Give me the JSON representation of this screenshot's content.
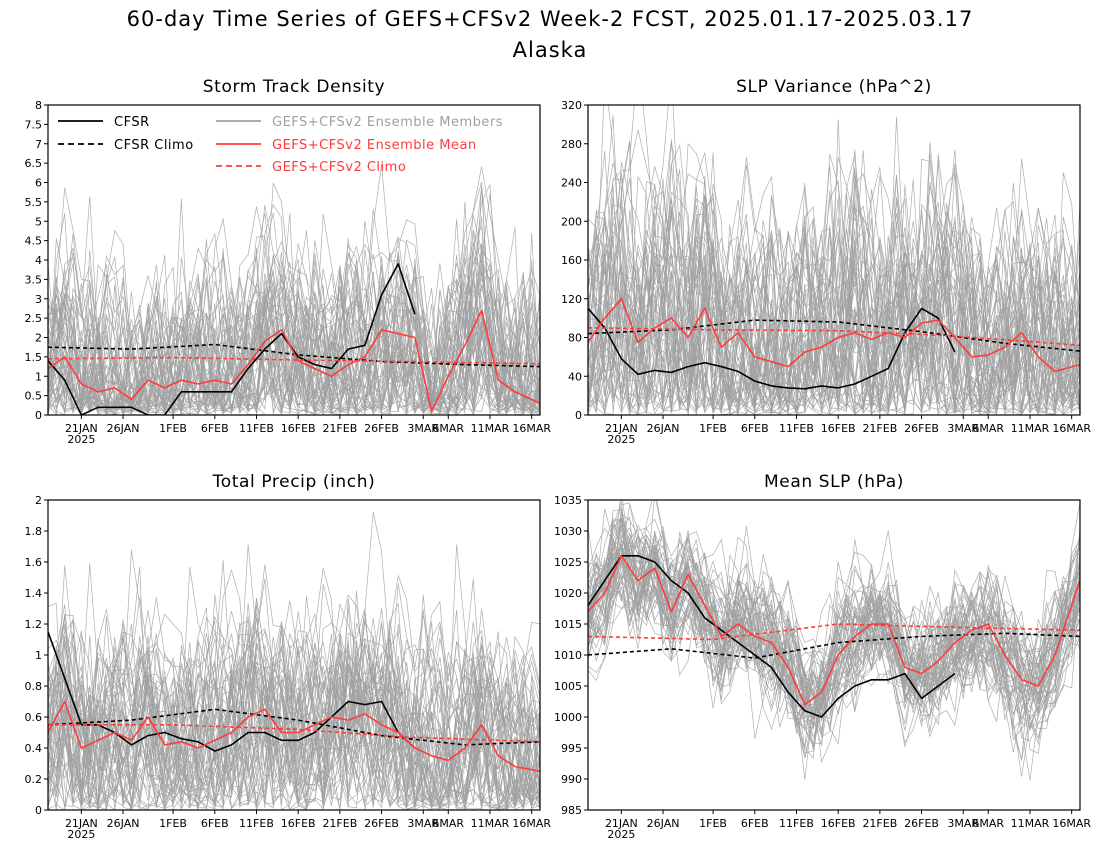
{
  "title_line1": "60-day Time Series of GEFS+CFSv2 Week-2 FCST, 2025.01.17-2025.03.17",
  "title_line2": "Alaska",
  "colors": {
    "cfsr": "#000000",
    "ensemble_members": "#a0a0a0",
    "ensemble_mean": "#ff3b3b",
    "climo_fcst": "#ff3b3b"
  },
  "legend": {
    "cfsr": "CFSR",
    "cfsr_climo": "CFSR Climo",
    "members": "GEFS+CFSv2 Ensemble Members",
    "mean": "GEFS+CFSv2 Ensemble Mean",
    "fcst_climo": "GEFS+CFSv2 Climo"
  },
  "x_ticks": [
    "21JAN",
    "26JAN",
    "1FEB",
    "6FEB",
    "11FEB",
    "16FEB",
    "21FEB",
    "26FEB",
    "3MAR",
    "6MAR",
    "11MAR",
    "16MAR"
  ],
  "x_year": "2025",
  "chart_data": [
    {
      "type": "line",
      "title": "Storm Track Density",
      "ylim": [
        0,
        8
      ],
      "y_ticks": [
        "0",
        "0.5",
        "1",
        "1.5",
        "2",
        "2.5",
        "3",
        "3.5",
        "4",
        "4.5",
        "5",
        "5.5",
        "6",
        "6.5",
        "7",
        "7.5",
        "8"
      ],
      "legend_placement": "top",
      "series": [
        {
          "name": "CFSR",
          "x": [
            "2025-01-17",
            "2025-01-19",
            "2025-01-21",
            "2025-01-23",
            "2025-01-25",
            "2025-01-27",
            "2025-01-29",
            "2025-01-31",
            "2025-02-02",
            "2025-02-04",
            "2025-02-06",
            "2025-02-08",
            "2025-02-10",
            "2025-02-12",
            "2025-02-14",
            "2025-02-16",
            "2025-02-18",
            "2025-02-20",
            "2025-02-22",
            "2025-02-24",
            "2025-02-26",
            "2025-02-28",
            "2025-03-02"
          ],
          "values": [
            1.4,
            0.9,
            0.0,
            0.2,
            0.2,
            0.2,
            0.0,
            0.0,
            0.6,
            0.6,
            0.6,
            0.6,
            1.2,
            1.7,
            2.1,
            1.5,
            1.3,
            1.2,
            1.7,
            1.8,
            3.1,
            3.9,
            2.6
          ]
        },
        {
          "name": "CFSR Climo",
          "x": [
            "2025-01-17",
            "2025-01-27",
            "2025-02-06",
            "2025-02-16",
            "2025-02-26",
            "2025-03-08",
            "2025-03-17"
          ],
          "values": [
            1.75,
            1.7,
            1.82,
            1.55,
            1.38,
            1.3,
            1.25
          ]
        },
        {
          "name": "GEFS+CFSv2 Ensemble Mean",
          "x": [
            "2025-01-17",
            "2025-01-19",
            "2025-01-21",
            "2025-01-23",
            "2025-01-25",
            "2025-01-27",
            "2025-01-29",
            "2025-01-31",
            "2025-02-02",
            "2025-02-04",
            "2025-02-06",
            "2025-02-08",
            "2025-02-10",
            "2025-02-12",
            "2025-02-14",
            "2025-02-16",
            "2025-02-18",
            "2025-02-20",
            "2025-02-22",
            "2025-02-24",
            "2025-02-26",
            "2025-02-28",
            "2025-03-02",
            "2025-03-04",
            "2025-03-06",
            "2025-03-08",
            "2025-03-10",
            "2025-03-12",
            "2025-03-14",
            "2025-03-17"
          ],
          "values": [
            1.2,
            1.5,
            0.8,
            0.6,
            0.7,
            0.4,
            0.9,
            0.7,
            0.9,
            0.8,
            0.9,
            0.8,
            1.3,
            1.9,
            2.2,
            1.4,
            1.2,
            1.0,
            1.3,
            1.5,
            2.2,
            2.1,
            2.0,
            0.1,
            1.0,
            1.8,
            2.7,
            0.9,
            0.6,
            0.3
          ]
        },
        {
          "name": "GEFS+CFSv2 Climo",
          "x": [
            "2025-01-17",
            "2025-02-01",
            "2025-02-16",
            "2025-03-01",
            "2025-03-17"
          ],
          "values": [
            1.45,
            1.48,
            1.42,
            1.38,
            1.32
          ]
        }
      ]
    },
    {
      "type": "line",
      "title": "SLP Variance (hPa^2)",
      "ylim": [
        0,
        320
      ],
      "y_ticks": [
        "0",
        "40",
        "80",
        "120",
        "160",
        "200",
        "240",
        "280",
        "320"
      ],
      "series": [
        {
          "name": "CFSR",
          "x": [
            "2025-01-17",
            "2025-01-19",
            "2025-01-21",
            "2025-01-23",
            "2025-01-25",
            "2025-01-27",
            "2025-01-29",
            "2025-01-31",
            "2025-02-02",
            "2025-02-04",
            "2025-02-06",
            "2025-02-08",
            "2025-02-10",
            "2025-02-12",
            "2025-02-14",
            "2025-02-16",
            "2025-02-18",
            "2025-02-20",
            "2025-02-22",
            "2025-02-24",
            "2025-02-26",
            "2025-02-28",
            "2025-03-02"
          ],
          "values": [
            110,
            90,
            58,
            42,
            46,
            44,
            50,
            54,
            50,
            45,
            35,
            30,
            28,
            27,
            30,
            28,
            32,
            40,
            48,
            85,
            110,
            100,
            65
          ]
        },
        {
          "name": "CFSR Climo",
          "x": [
            "2025-01-17",
            "2025-01-27",
            "2025-02-06",
            "2025-02-16",
            "2025-02-26",
            "2025-03-08",
            "2025-03-17"
          ],
          "values": [
            84,
            88,
            98,
            96,
            86,
            74,
            66
          ]
        },
        {
          "name": "GEFS+CFSv2 Ensemble Mean",
          "x": [
            "2025-01-17",
            "2025-01-19",
            "2025-01-21",
            "2025-01-23",
            "2025-01-25",
            "2025-01-27",
            "2025-01-29",
            "2025-01-31",
            "2025-02-02",
            "2025-02-04",
            "2025-02-06",
            "2025-02-08",
            "2025-02-10",
            "2025-02-12",
            "2025-02-14",
            "2025-02-16",
            "2025-02-18",
            "2025-02-20",
            "2025-02-22",
            "2025-02-24",
            "2025-02-26",
            "2025-02-28",
            "2025-03-02",
            "2025-03-04",
            "2025-03-06",
            "2025-03-08",
            "2025-03-10",
            "2025-03-12",
            "2025-03-14",
            "2025-03-17"
          ],
          "values": [
            75,
            100,
            120,
            75,
            90,
            100,
            80,
            110,
            70,
            85,
            60,
            55,
            50,
            65,
            70,
            80,
            85,
            78,
            85,
            80,
            95,
            98,
            80,
            60,
            62,
            70,
            85,
            60,
            45,
            52
          ]
        },
        {
          "name": "GEFS+CFSv2 Climo",
          "x": [
            "2025-01-17",
            "2025-02-01",
            "2025-02-16",
            "2025-03-01",
            "2025-03-17"
          ],
          "values": [
            90,
            88,
            87,
            82,
            72
          ]
        }
      ]
    },
    {
      "type": "line",
      "title": "Total Precip (inch)",
      "ylim": [
        0,
        2
      ],
      "y_ticks": [
        "0",
        "0.2",
        "0.4",
        "0.6",
        "0.8",
        "1",
        "1.2",
        "1.4",
        "1.6",
        "1.8",
        "2"
      ],
      "series": [
        {
          "name": "CFSR",
          "x": [
            "2025-01-17",
            "2025-01-19",
            "2025-01-21",
            "2025-01-23",
            "2025-01-25",
            "2025-01-27",
            "2025-01-29",
            "2025-01-31",
            "2025-02-02",
            "2025-02-04",
            "2025-02-06",
            "2025-02-08",
            "2025-02-10",
            "2025-02-12",
            "2025-02-14",
            "2025-02-16",
            "2025-02-18",
            "2025-02-20",
            "2025-02-22",
            "2025-02-24",
            "2025-02-26",
            "2025-02-28",
            "2025-03-02"
          ],
          "values": [
            1.15,
            0.85,
            0.55,
            0.55,
            0.5,
            0.42,
            0.48,
            0.5,
            0.46,
            0.44,
            0.38,
            0.42,
            0.5,
            0.5,
            0.45,
            0.45,
            0.5,
            0.6,
            0.7,
            0.68,
            0.7,
            0.5,
            0.4
          ]
        },
        {
          "name": "CFSR Climo",
          "x": [
            "2025-01-17",
            "2025-01-27",
            "2025-02-06",
            "2025-02-16",
            "2025-02-26",
            "2025-03-08",
            "2025-03-17"
          ],
          "values": [
            0.55,
            0.58,
            0.65,
            0.58,
            0.48,
            0.42,
            0.44
          ]
        },
        {
          "name": "GEFS+CFSv2 Ensemble Mean",
          "x": [
            "2025-01-17",
            "2025-01-19",
            "2025-01-21",
            "2025-01-23",
            "2025-01-25",
            "2025-01-27",
            "2025-01-29",
            "2025-01-31",
            "2025-02-02",
            "2025-02-04",
            "2025-02-06",
            "2025-02-08",
            "2025-02-10",
            "2025-02-12",
            "2025-02-14",
            "2025-02-16",
            "2025-02-18",
            "2025-02-20",
            "2025-02-22",
            "2025-02-24",
            "2025-02-26",
            "2025-02-28",
            "2025-03-02",
            "2025-03-04",
            "2025-03-06",
            "2025-03-08",
            "2025-03-10",
            "2025-03-12",
            "2025-03-14",
            "2025-03-17"
          ],
          "values": [
            0.5,
            0.7,
            0.4,
            0.45,
            0.5,
            0.45,
            0.6,
            0.42,
            0.44,
            0.4,
            0.45,
            0.5,
            0.6,
            0.65,
            0.5,
            0.5,
            0.55,
            0.6,
            0.58,
            0.62,
            0.55,
            0.5,
            0.4,
            0.35,
            0.32,
            0.4,
            0.55,
            0.35,
            0.28,
            0.25
          ]
        },
        {
          "name": "GEFS+CFSv2 Climo",
          "x": [
            "2025-01-17",
            "2025-02-01",
            "2025-02-16",
            "2025-03-01",
            "2025-03-17"
          ],
          "values": [
            0.55,
            0.55,
            0.52,
            0.47,
            0.44
          ]
        }
      ]
    },
    {
      "type": "line",
      "title": "Mean SLP (hPa)",
      "ylim": [
        985,
        1035
      ],
      "y_ticks": [
        "985",
        "990",
        "995",
        "1000",
        "1005",
        "1010",
        "1015",
        "1020",
        "1025",
        "1030",
        "1035"
      ],
      "series": [
        {
          "name": "CFSR",
          "x": [
            "2025-01-17",
            "2025-01-19",
            "2025-01-21",
            "2025-01-23",
            "2025-01-25",
            "2025-01-27",
            "2025-01-29",
            "2025-01-31",
            "2025-02-02",
            "2025-02-04",
            "2025-02-06",
            "2025-02-08",
            "2025-02-10",
            "2025-02-12",
            "2025-02-14",
            "2025-02-16",
            "2025-02-18",
            "2025-02-20",
            "2025-02-22",
            "2025-02-24",
            "2025-02-26",
            "2025-02-28",
            "2025-03-02"
          ],
          "values": [
            1018,
            1022,
            1026,
            1026,
            1025,
            1022,
            1020,
            1016,
            1014,
            1012,
            1010,
            1008,
            1004,
            1001,
            1000,
            1003,
            1005,
            1006,
            1006,
            1007,
            1003,
            1005,
            1007
          ]
        },
        {
          "name": "CFSR Climo",
          "x": [
            "2025-01-17",
            "2025-01-27",
            "2025-02-06",
            "2025-02-16",
            "2025-02-26",
            "2025-03-08",
            "2025-03-17"
          ],
          "values": [
            1010,
            1011,
            1009.5,
            1012,
            1013,
            1013.5,
            1013
          ]
        },
        {
          "name": "GEFS+CFSv2 Ensemble Mean",
          "x": [
            "2025-01-17",
            "2025-01-19",
            "2025-01-21",
            "2025-01-23",
            "2025-01-25",
            "2025-01-27",
            "2025-01-29",
            "2025-01-31",
            "2025-02-02",
            "2025-02-04",
            "2025-02-06",
            "2025-02-08",
            "2025-02-10",
            "2025-02-12",
            "2025-02-14",
            "2025-02-16",
            "2025-02-18",
            "2025-02-20",
            "2025-02-22",
            "2025-02-24",
            "2025-02-26",
            "2025-02-28",
            "2025-03-02",
            "2025-03-04",
            "2025-03-06",
            "2025-03-08",
            "2025-03-10",
            "2025-03-12",
            "2025-03-14",
            "2025-03-17"
          ],
          "values": [
            1017,
            1020,
            1026,
            1022,
            1024,
            1017,
            1023,
            1018,
            1013,
            1015,
            1013,
            1012,
            1008,
            1002,
            1004,
            1010,
            1013,
            1015,
            1015,
            1008,
            1007,
            1009,
            1012,
            1014,
            1015,
            1010,
            1006,
            1005,
            1010,
            1022
          ]
        },
        {
          "name": "GEFS+CFSv2 Climo",
          "x": [
            "2025-01-17",
            "2025-02-01",
            "2025-02-16",
            "2025-03-01",
            "2025-03-17"
          ],
          "values": [
            1013,
            1012.5,
            1015,
            1014.5,
            1014
          ]
        }
      ]
    }
  ]
}
